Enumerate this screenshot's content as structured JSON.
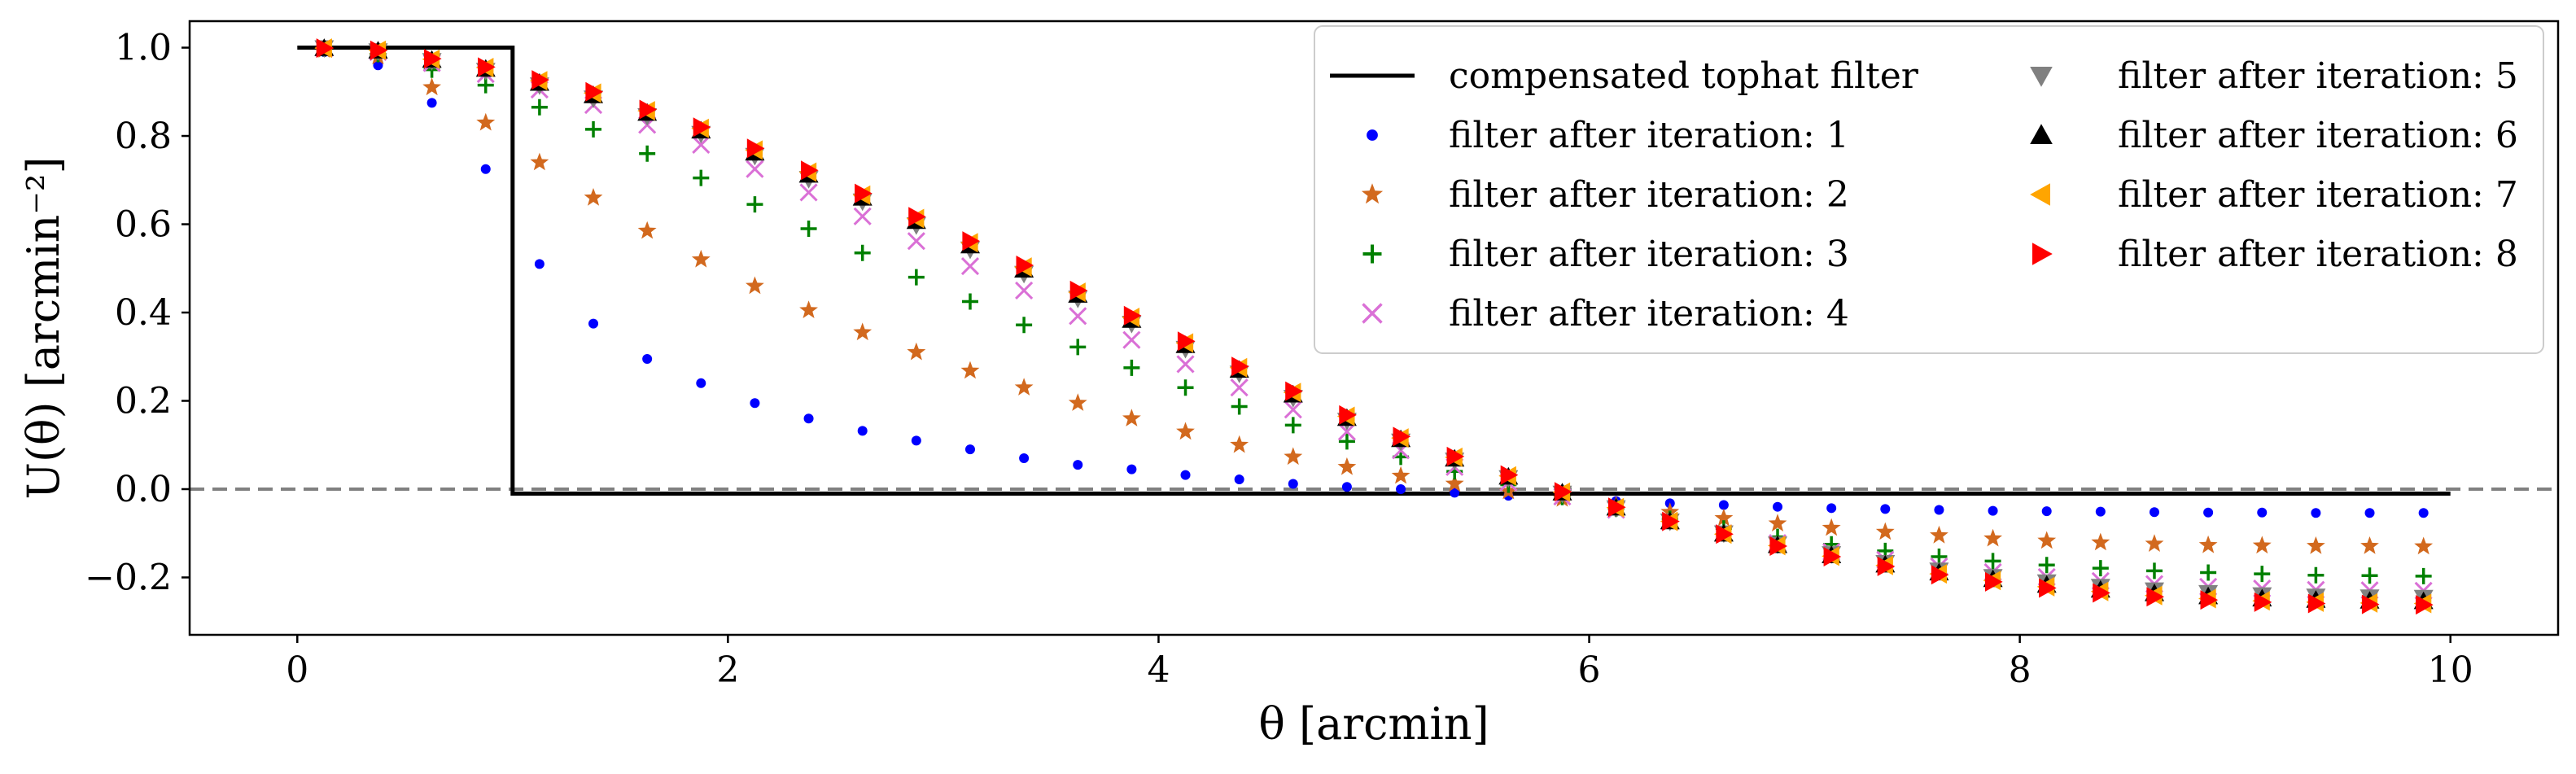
{
  "chart_data": {
    "type": "scatter",
    "xlabel": "θ [arcmin]",
    "ylabel": "U(θ) [arcmin⁻²]",
    "xlim": [
      -0.5,
      10.5
    ],
    "ylim": [
      -0.33,
      1.06
    ],
    "xticks": [
      0,
      2,
      4,
      6,
      8,
      10
    ],
    "yticks": [
      -0.2,
      0.0,
      0.2,
      0.4,
      0.6,
      0.8,
      1.0
    ],
    "ytick_labels": [
      "−0.2",
      "0.0",
      "0.2",
      "0.4",
      "0.6",
      "0.8",
      "1.0"
    ],
    "grid": false,
    "legend_position": "top-right",
    "reference_line": {
      "y": 0.0,
      "style": "dashed",
      "color": "#808080"
    },
    "tophat": {
      "name": "compensated tophat filter",
      "color": "#000000",
      "x": [
        0,
        1,
        1,
        10
      ],
      "y": [
        1.0,
        1.0,
        -0.0101,
        -0.0101
      ]
    },
    "x": [
      0.125,
      0.375,
      0.625,
      0.875,
      1.125,
      1.375,
      1.625,
      1.875,
      2.125,
      2.375,
      2.625,
      2.875,
      3.125,
      3.375,
      3.625,
      3.875,
      4.125,
      4.375,
      4.625,
      4.875,
      5.125,
      5.375,
      5.625,
      5.875,
      6.125,
      6.375,
      6.625,
      6.875,
      7.125,
      7.375,
      7.625,
      7.875,
      8.125,
      8.375,
      8.625,
      8.875,
      9.125,
      9.375,
      9.625,
      9.875
    ],
    "series": [
      {
        "name": "filter after iteration: 1",
        "marker": "dot",
        "color": "#0000ff",
        "values": [
          0.99,
          0.96,
          0.875,
          0.725,
          0.51,
          0.375,
          0.295,
          0.24,
          0.195,
          0.16,
          0.132,
          0.11,
          0.09,
          0.07,
          0.055,
          0.045,
          0.032,
          0.022,
          0.012,
          0.005,
          0.0,
          -0.008,
          -0.015,
          -0.02,
          -0.027,
          -0.032,
          -0.036,
          -0.04,
          -0.043,
          -0.045,
          -0.047,
          -0.049,
          -0.05,
          -0.051,
          -0.052,
          -0.053,
          -0.053,
          -0.054,
          -0.054,
          -0.054
        ]
      },
      {
        "name": "filter after iteration: 2",
        "marker": "star",
        "color": "#d2691e",
        "values": [
          0.995,
          0.98,
          0.91,
          0.83,
          0.74,
          0.66,
          0.585,
          0.52,
          0.46,
          0.405,
          0.355,
          0.31,
          0.268,
          0.23,
          0.195,
          0.16,
          0.13,
          0.1,
          0.073,
          0.05,
          0.03,
          0.012,
          -0.005,
          -0.022,
          -0.037,
          -0.052,
          -0.066,
          -0.078,
          -0.088,
          -0.097,
          -0.105,
          -0.112,
          -0.117,
          -0.121,
          -0.124,
          -0.127,
          -0.128,
          -0.129,
          -0.129,
          -0.13
        ]
      },
      {
        "name": "filter after iteration: 3",
        "marker": "plus",
        "color": "#008000",
        "values": [
          0.998,
          0.985,
          0.95,
          0.915,
          0.865,
          0.815,
          0.76,
          0.705,
          0.645,
          0.59,
          0.535,
          0.48,
          0.425,
          0.372,
          0.322,
          0.275,
          0.23,
          0.187,
          0.145,
          0.108,
          0.073,
          0.04,
          0.01,
          -0.018,
          -0.044,
          -0.067,
          -0.089,
          -0.108,
          -0.125,
          -0.14,
          -0.153,
          -0.163,
          -0.172,
          -0.179,
          -0.185,
          -0.189,
          -0.192,
          -0.195,
          -0.196,
          -0.197
        ]
      },
      {
        "name": "filter after iteration: 4",
        "marker": "x",
        "color": "#da70d6",
        "values": [
          0.998,
          0.99,
          0.965,
          0.94,
          0.905,
          0.87,
          0.825,
          0.78,
          0.725,
          0.672,
          0.618,
          0.562,
          0.505,
          0.45,
          0.392,
          0.338,
          0.283,
          0.23,
          0.18,
          0.13,
          0.088,
          0.05,
          0.015,
          -0.017,
          -0.047,
          -0.074,
          -0.1,
          -0.122,
          -0.142,
          -0.16,
          -0.175,
          -0.188,
          -0.199,
          -0.208,
          -0.215,
          -0.221,
          -0.225,
          -0.228,
          -0.229,
          -0.23
        ]
      },
      {
        "name": "filter after iteration: 5",
        "marker": "triangle-down",
        "color": "#808080",
        "values": [
          0.999,
          0.992,
          0.97,
          0.948,
          0.915,
          0.885,
          0.845,
          0.805,
          0.755,
          0.703,
          0.652,
          0.598,
          0.543,
          0.488,
          0.432,
          0.375,
          0.318,
          0.262,
          0.207,
          0.155,
          0.108,
          0.065,
          0.025,
          -0.01,
          -0.043,
          -0.073,
          -0.1,
          -0.125,
          -0.147,
          -0.167,
          -0.184,
          -0.199,
          -0.211,
          -0.221,
          -0.229,
          -0.235,
          -0.24,
          -0.243,
          -0.245,
          -0.246
        ]
      },
      {
        "name": "filter after iteration: 6",
        "marker": "triangle-up",
        "color": "#000000",
        "values": [
          0.999,
          0.993,
          0.972,
          0.952,
          0.92,
          0.892,
          0.852,
          0.812,
          0.762,
          0.712,
          0.66,
          0.607,
          0.552,
          0.497,
          0.44,
          0.383,
          0.326,
          0.27,
          0.214,
          0.161,
          0.113,
          0.069,
          0.028,
          -0.008,
          -0.042,
          -0.073,
          -0.101,
          -0.127,
          -0.15,
          -0.171,
          -0.189,
          -0.204,
          -0.217,
          -0.228,
          -0.236,
          -0.243,
          -0.248,
          -0.251,
          -0.253,
          -0.254
        ]
      },
      {
        "name": "filter after iteration: 7",
        "marker": "triangle-left",
        "color": "#ffa500",
        "values": [
          0.999,
          0.994,
          0.974,
          0.955,
          0.925,
          0.897,
          0.857,
          0.817,
          0.768,
          0.718,
          0.666,
          0.613,
          0.558,
          0.503,
          0.446,
          0.389,
          0.331,
          0.275,
          0.219,
          0.165,
          0.116,
          0.072,
          0.03,
          -0.007,
          -0.042,
          -0.073,
          -0.102,
          -0.128,
          -0.152,
          -0.173,
          -0.192,
          -0.207,
          -0.221,
          -0.232,
          -0.241,
          -0.248,
          -0.253,
          -0.256,
          -0.258,
          -0.259
        ]
      },
      {
        "name": "filter after iteration: 8",
        "marker": "triangle-right",
        "color": "#ff0000",
        "values": [
          0.999,
          0.994,
          0.975,
          0.956,
          0.927,
          0.9,
          0.86,
          0.82,
          0.772,
          0.722,
          0.67,
          0.617,
          0.562,
          0.507,
          0.45,
          0.393,
          0.335,
          0.278,
          0.222,
          0.168,
          0.119,
          0.074,
          0.032,
          -0.006,
          -0.041,
          -0.073,
          -0.102,
          -0.129,
          -0.153,
          -0.175,
          -0.194,
          -0.21,
          -0.224,
          -0.235,
          -0.244,
          -0.251,
          -0.256,
          -0.259,
          -0.261,
          -0.262
        ]
      }
    ]
  }
}
